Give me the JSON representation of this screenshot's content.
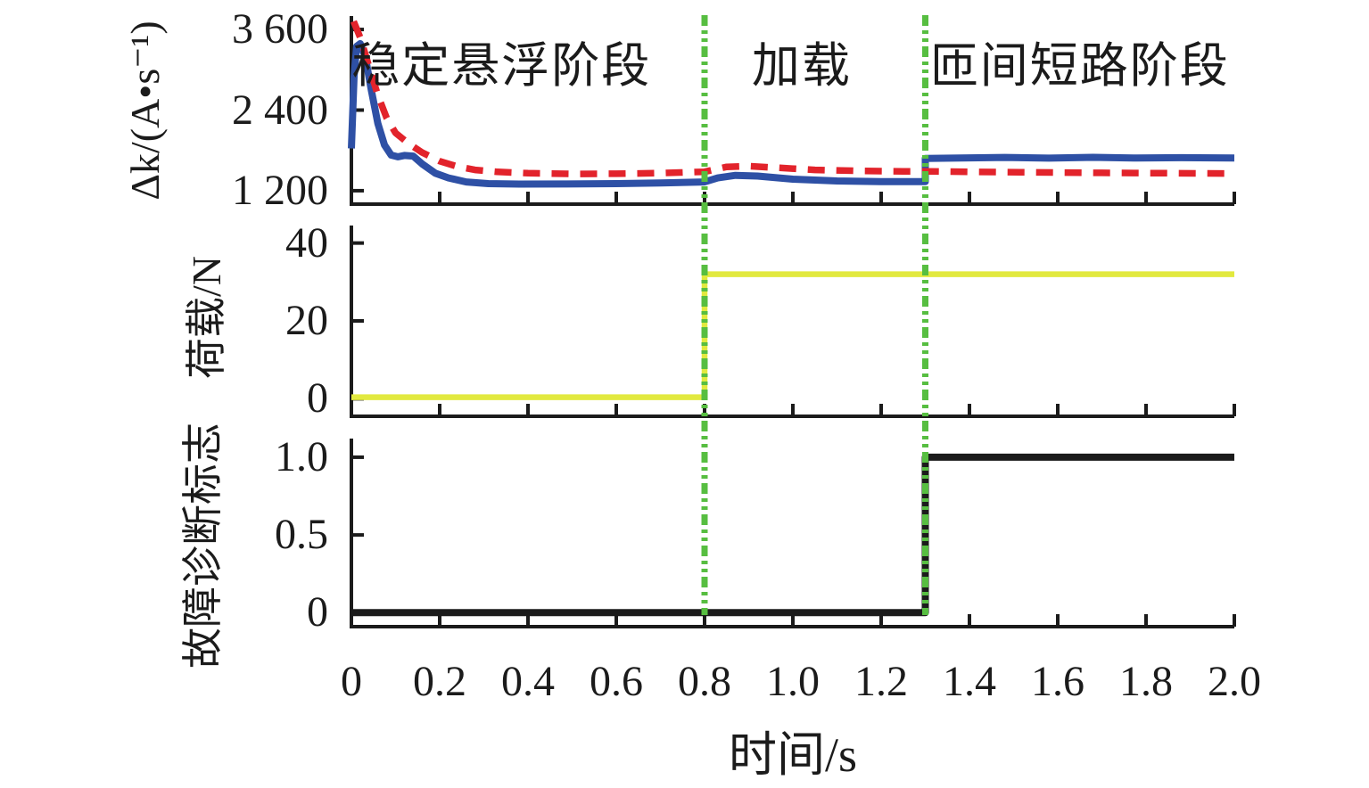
{
  "figure": {
    "background": "#ffffff",
    "text_color": "#1b1b1b",
    "axis_color": "#1b1b1b"
  },
  "x_axis": {
    "label": "时间/s",
    "lim": [
      0,
      2
    ],
    "ticks": [
      {
        "value": 0.0,
        "label": "0"
      },
      {
        "value": 0.2,
        "label": "0.2"
      },
      {
        "value": 0.4,
        "label": "0.4"
      },
      {
        "value": 0.6,
        "label": "0.6"
      },
      {
        "value": 0.8,
        "label": "0.8"
      },
      {
        "value": 1.0,
        "label": "1.0"
      },
      {
        "value": 1.2,
        "label": "1.2"
      },
      {
        "value": 1.4,
        "label": "1.4"
      },
      {
        "value": 1.6,
        "label": "1.6"
      },
      {
        "value": 1.8,
        "label": "1.8"
      },
      {
        "value": 2.0,
        "label": "2.0"
      }
    ]
  },
  "event_lines": [
    {
      "x": 0.8,
      "color": "#57be41",
      "style": "dash-dot-dot"
    },
    {
      "x": 1.3,
      "color": "#57be41",
      "style": "dash-dot-dot"
    }
  ],
  "chart_data": [
    {
      "type": "line",
      "ylabel": "Δk/(A•s⁻¹)",
      "ylim": [
        1000,
        3800
      ],
      "grid": false,
      "legend": "none",
      "yticks": [
        {
          "value": 1200,
          "label": "1 200"
        },
        {
          "value": 2400,
          "label": "2 400"
        },
        {
          "value": 3600,
          "label": "3 600"
        }
      ],
      "annotations": [
        {
          "text": "稳定悬浮阶段",
          "x": 0.34,
          "y": 3060
        },
        {
          "text": "加载",
          "x": 1.02,
          "y": 3060
        },
        {
          "text": "匝间短路阶段",
          "x": 1.65,
          "y": 3060
        }
      ],
      "series": [
        {
          "id": "blue_solid",
          "color": "#2e50a5",
          "style": "solid",
          "x": [
            0,
            0.006,
            0.012,
            0.02,
            0.032,
            0.045,
            0.06,
            0.075,
            0.09,
            0.105,
            0.12,
            0.14,
            0.16,
            0.19,
            0.22,
            0.26,
            0.31,
            0.38,
            0.48,
            0.6,
            0.7,
            0.8,
            0.83,
            0.87,
            0.92,
            1.0,
            1.1,
            1.2,
            1.3,
            1.3,
            1.38,
            1.48,
            1.58,
            1.68,
            1.78,
            1.88,
            2.0
          ],
          "y": [
            1830,
            2900,
            3350,
            3390,
            3180,
            2700,
            2200,
            1880,
            1730,
            1705,
            1725,
            1715,
            1600,
            1460,
            1390,
            1330,
            1305,
            1298,
            1300,
            1305,
            1315,
            1330,
            1390,
            1428,
            1418,
            1372,
            1345,
            1335,
            1335,
            1680,
            1688,
            1695,
            1685,
            1697,
            1686,
            1692,
            1688
          ]
        },
        {
          "id": "red_dashed",
          "color": "#e2232b",
          "style": "dashed",
          "x": [
            0.005,
            0.02,
            0.04,
            0.06,
            0.08,
            0.1,
            0.13,
            0.16,
            0.2,
            0.24,
            0.28,
            0.33,
            0.4,
            0.5,
            0.6,
            0.7,
            0.8,
            0.85,
            0.9,
            0.97,
            1.05,
            1.15,
            1.25,
            1.3,
            1.4,
            1.55,
            1.7,
            1.85,
            2.0
          ],
          "y": [
            3720,
            3480,
            3050,
            2620,
            2280,
            2060,
            1900,
            1770,
            1640,
            1560,
            1510,
            1480,
            1460,
            1450,
            1452,
            1462,
            1482,
            1555,
            1565,
            1540,
            1510,
            1495,
            1488,
            1488,
            1480,
            1472,
            1466,
            1460,
            1455
          ]
        }
      ]
    },
    {
      "type": "line",
      "ylabel": "荷载/N",
      "ylim": [
        -4.5,
        44.5
      ],
      "grid": false,
      "legend": "none",
      "yticks": [
        {
          "value": 0,
          "label": "0"
        },
        {
          "value": 20,
          "label": "20"
        },
        {
          "value": 40,
          "label": "40"
        }
      ],
      "annotations": [],
      "series": [
        {
          "id": "yellow_step",
          "color": "#e2e93f",
          "style": "solid",
          "x": [
            0,
            0.8,
            0.8,
            2.0
          ],
          "y": [
            0.4,
            0.4,
            32,
            32
          ]
        }
      ]
    },
    {
      "type": "line",
      "ylabel": "故障诊断标志",
      "ylim": [
        -0.09,
        1.12
      ],
      "grid": false,
      "legend": "none",
      "yticks": [
        {
          "value": 0,
          "label": "0"
        },
        {
          "value": 0.5,
          "label": "0.5"
        },
        {
          "value": 1.0,
          "label": "1.0"
        }
      ],
      "annotations": [],
      "series": [
        {
          "id": "black_step",
          "color": "#1b1b1b",
          "style": "solid",
          "x": [
            0,
            1.3,
            1.3,
            2.0
          ],
          "y": [
            0,
            0,
            1,
            1
          ]
        }
      ]
    }
  ]
}
